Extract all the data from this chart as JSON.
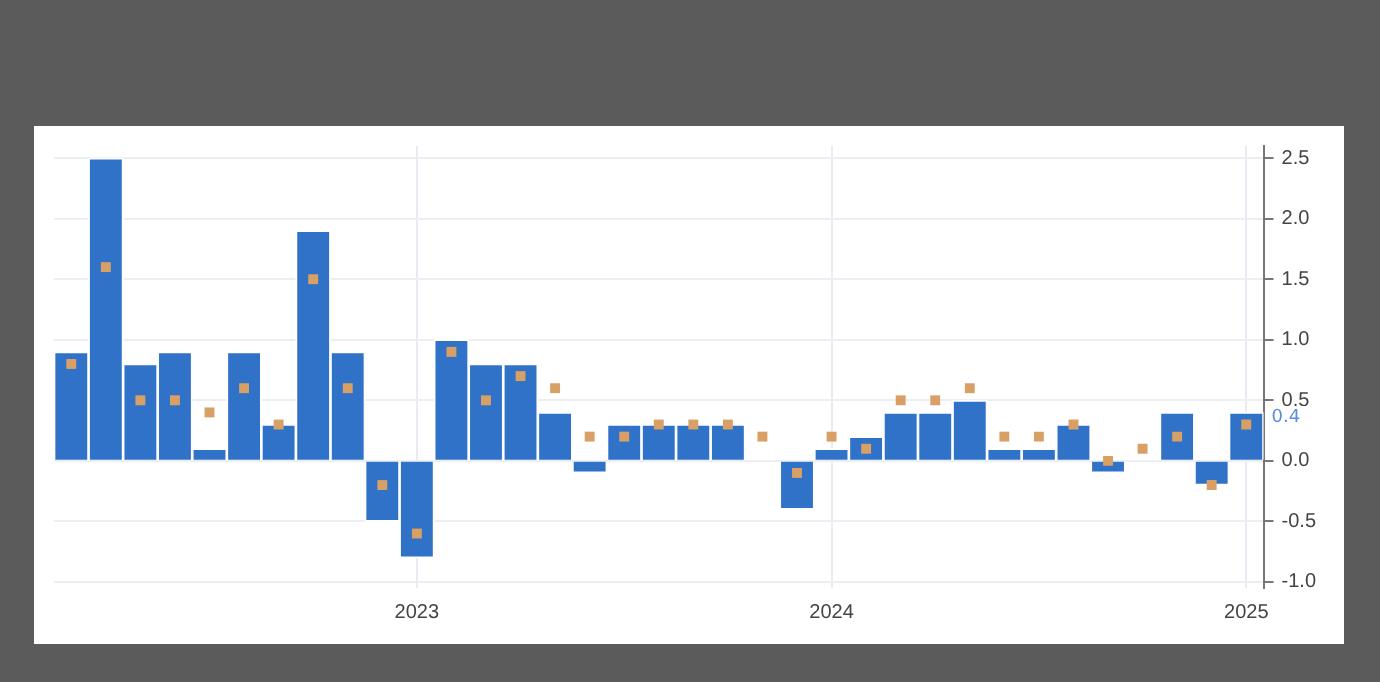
{
  "chart_data": {
    "type": "bar",
    "categories": [
      null,
      null,
      null,
      null,
      null,
      null,
      null,
      null,
      null,
      null,
      "2023",
      null,
      null,
      null,
      null,
      null,
      null,
      null,
      null,
      null,
      null,
      null,
      "2024",
      null,
      null,
      null,
      null,
      null,
      null,
      null,
      null,
      null,
      null,
      null,
      "2025"
    ],
    "series": [
      {
        "color": "#3172c9",
        "values": [
          0.9,
          2.5,
          0.8,
          0.9,
          0.1,
          0.9,
          0.3,
          1.9,
          0.9,
          -0.5,
          -0.8,
          1.0,
          0.8,
          0.8,
          0.4,
          -0.1,
          0.3,
          0.3,
          0.3,
          0.3,
          0.0,
          -0.4,
          0.1,
          0.2,
          0.4,
          0.4,
          0.5,
          0.1,
          0.1,
          0.3,
          -0.1,
          0.0,
          0.4,
          -0.2,
          0.4
        ]
      },
      {
        "type": "scatter",
        "marker": "square",
        "color": "#d9a066",
        "values": [
          0.8,
          1.6,
          0.5,
          0.5,
          0.4,
          0.6,
          0.3,
          1.5,
          0.6,
          -0.2,
          -0.6,
          0.9,
          0.5,
          0.7,
          0.6,
          0.2,
          0.2,
          0.3,
          0.3,
          0.3,
          0.2,
          -0.1,
          0.2,
          0.1,
          0.5,
          0.5,
          0.6,
          0.2,
          0.2,
          0.3,
          0.0,
          0.1,
          0.2,
          -0.2,
          0.3
        ]
      }
    ],
    "ylim": [
      -1.05,
      2.6
    ],
    "yticks": [
      {
        "value": -1,
        "label": "-1.0"
      },
      {
        "value": -0.5,
        "label": "-0.5"
      },
      {
        "value": 0,
        "label": "0.0"
      },
      {
        "value": 0.5,
        "label": "0.5"
      },
      {
        "value": 1,
        "label": "1.0"
      },
      {
        "value": 1.5,
        "label": "1.5"
      },
      {
        "value": 2,
        "label": "2.0"
      },
      {
        "value": 2.5,
        "label": "2.5"
      }
    ],
    "annotations": [
      "0.4"
    ],
    "grid": true,
    "legend": false
  }
}
